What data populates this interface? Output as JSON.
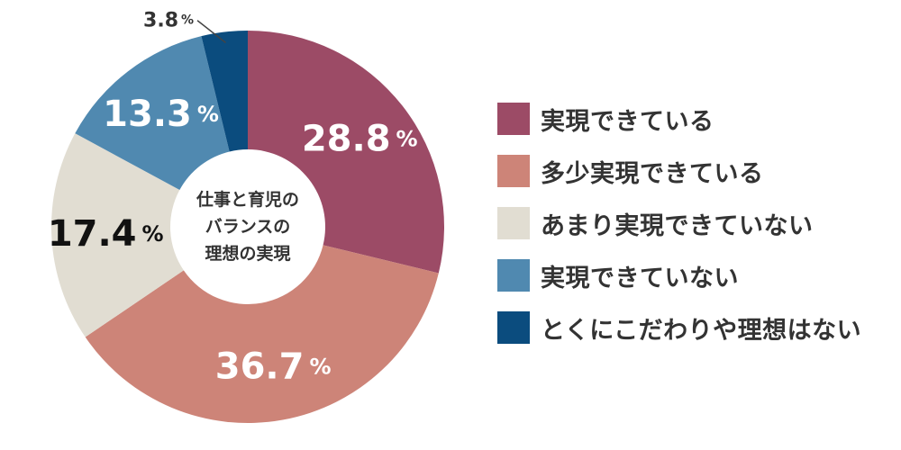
{
  "chart_data": {
    "type": "pie",
    "title": "仕事と育児のバランスの理想の実現",
    "center_label_lines": [
      "仕事と育児の",
      "バランスの",
      "理想の実現"
    ],
    "percent_sign": "%",
    "legend_placement": "right",
    "slices": [
      {
        "label": "実現できている",
        "value": 28.8,
        "display": "28.8",
        "color": "#9c4b66",
        "text_color": "#ffffff"
      },
      {
        "label": "多少実現できている",
        "value": 36.7,
        "display": "36.7",
        "color": "#cd8478",
        "text_color": "#ffffff"
      },
      {
        "label": "あまり実現できていない",
        "value": 17.4,
        "display": "17.4",
        "color": "#e1ddd2",
        "text_color": "#111111"
      },
      {
        "label": "実現できていない",
        "value": 13.3,
        "display": "13.3",
        "color": "#5089b0",
        "text_color": "#ffffff"
      },
      {
        "label": "とくにこだわりや理想はない",
        "value": 3.8,
        "display": "3.8",
        "color": "#0b4c7e",
        "text_color": "#333333"
      }
    ]
  }
}
